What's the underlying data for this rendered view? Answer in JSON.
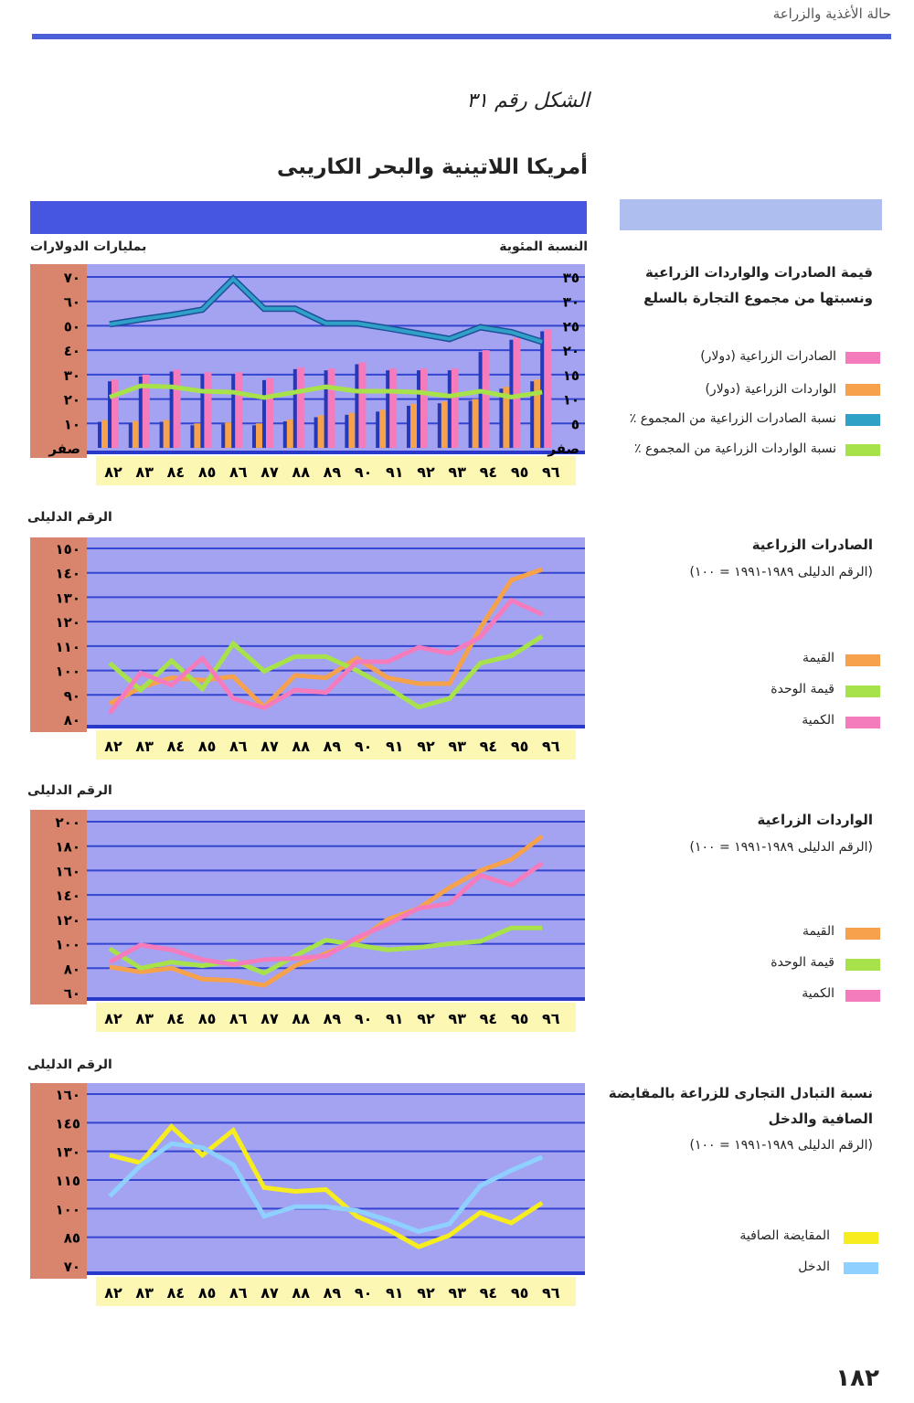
{
  "header": {
    "running_title": "حالة الأغذية والزراعة",
    "figure_label": "الشكل رقم ٣١",
    "region_title": "أمريكا اللاتينية والبحر الكاريبى",
    "page_number": "١٨٢"
  },
  "years": [
    "٨٢",
    "٨٣",
    "٨٤",
    "٨٥",
    "٨٦",
    "٨٧",
    "٨٨",
    "٨٩",
    "٩٠",
    "٩١",
    "٩٢",
    "٩٣",
    "٩٤",
    "٩٥",
    "٩٦"
  ],
  "colors": {
    "plot_bg": "#a3a3f2",
    "grid": "#3446d0",
    "axis_panel": "#d9846c",
    "year_strip": "#fdf7b4",
    "pink": "#f57cbc",
    "orange": "#f6a24c",
    "teal": "#2fa0c6",
    "green": "#a8e24a",
    "yellow": "#f6ec1e",
    "cyan": "#8ed0ff"
  },
  "chart_data": [
    {
      "type": "bar+line",
      "title": "قيمة الصادرات والواردات الزراعية ونسبتها من مجموع التجارة بالسلع",
      "ylabel_left": "بمليارات الدولارات",
      "ylabel_right": "النسبة المئوية",
      "yticks_left": [
        "صفر",
        "١٠",
        "٢٠",
        "٣٠",
        "٤٠",
        "٥٠",
        "٦٠",
        "٧٠"
      ],
      "yticks_right": [
        "صفر",
        "٥",
        "١٠",
        "١٥",
        "٢٠",
        "٢٥",
        "٣٠",
        "٣٥"
      ],
      "ylim_left": [
        0,
        70
      ],
      "ylim_right": [
        0,
        35
      ],
      "x": [
        1982,
        1983,
        1984,
        1985,
        1986,
        1987,
        1988,
        1989,
        1990,
        1991,
        1992,
        1993,
        1994,
        1995,
        1996
      ],
      "series": [
        {
          "name": "الصادرات الزراعية (دولار)",
          "kind": "bar",
          "axis": "left",
          "color": "pink",
          "values": [
            28,
            30,
            32,
            31,
            31,
            28.5,
            33,
            32.5,
            35,
            32.5,
            32.5,
            32.5,
            40,
            45,
            48.5
          ]
        },
        {
          "name": "الواردات الزراعية (دولار)",
          "kind": "bar",
          "axis": "left",
          "color": "orange",
          "values": [
            11.4,
            11,
            11.4,
            10,
            10.4,
            10,
            11.6,
            13.3,
            14.3,
            15.6,
            18,
            19,
            20,
            25,
            28
          ]
        },
        {
          "name": "نسبة الصادرات الزراعية من المجموع ٪",
          "kind": "line",
          "axis": "right",
          "color": "teal",
          "values": [
            25.3,
            26.3,
            27.2,
            28.3,
            34.6,
            28.5,
            28.5,
            25.5,
            25.5,
            24.5,
            23.4,
            22.3,
            24.7,
            23.7,
            21.7
          ]
        },
        {
          "name": "نسبة الواردات الزراعية من المجموع ٪",
          "kind": "line",
          "axis": "right",
          "color": "green",
          "values": [
            10.4,
            12.7,
            12.5,
            11.6,
            11.4,
            10.3,
            11.4,
            12.5,
            11.6,
            11.6,
            11.4,
            10.6,
            11.6,
            10.4,
            11.4
          ]
        }
      ]
    },
    {
      "type": "line",
      "title": "الصادرات الزراعية",
      "subtitle": "(الرقم الدليلى ١٩٨٩-١٩٩١ = ١٠٠)",
      "ylabel": "الرقم الدليلى",
      "yticks": [
        "٨٠",
        "٩٠",
        "١٠٠",
        "١١٠",
        "١٢٠",
        "١٣٠",
        "١٤٠",
        "١٥٠"
      ],
      "ylim": [
        80,
        150
      ],
      "series": [
        {
          "name": "القيمة",
          "color": "orange",
          "values": [
            86.4,
            93,
            97,
            96,
            97.5,
            85,
            98,
            97,
            105,
            97,
            94.6,
            94.6,
            117.5,
            137,
            141.4
          ]
        },
        {
          "name": "قيمة الوحدة",
          "color": "green",
          "values": [
            103,
            92,
            104,
            92.5,
            111,
            99.7,
            105.7,
            105.7,
            100,
            93,
            85,
            88.5,
            103,
            106,
            114
          ]
        },
        {
          "name": "الكمية",
          "color": "pink",
          "values": [
            82.5,
            99,
            94,
            105,
            88.5,
            84.7,
            92,
            91,
            103.6,
            103.6,
            109.5,
            107,
            113.7,
            128.7,
            123
          ]
        }
      ]
    },
    {
      "type": "line",
      "title": "الواردات الزراعية",
      "subtitle": "(الرقم الدليلى ١٩٨٩-١٩٩١ = ١٠٠)",
      "ylabel": "الرقم الدليلى",
      "yticks": [
        "٦٠",
        "٨٠",
        "١٠٠",
        "١٢٠",
        "١٤٠",
        "١٦٠",
        "١٨٠",
        "٢٠٠"
      ],
      "ylim": [
        60,
        200
      ],
      "series": [
        {
          "name": "القيمة",
          "color": "orange",
          "values": [
            81,
            77,
            80,
            71,
            70,
            66,
            82,
            92,
            102,
            120,
            129,
            146,
            160,
            169,
            188
          ]
        },
        {
          "name": "قيمة الوحدة",
          "color": "green",
          "values": [
            96,
            80,
            85,
            82,
            86,
            76,
            90,
            103,
            99,
            95,
            97,
            100,
            102,
            113,
            113
          ]
        },
        {
          "name": "الكمية",
          "color": "pink",
          "values": [
            85,
            99,
            95,
            87,
            83,
            87,
            88,
            90,
            105,
            116,
            129,
            133,
            156,
            148,
            166
          ]
        }
      ]
    },
    {
      "type": "line",
      "title": "نسبة التبادل التجارى للزراعة بالمقايضة الصافية والدخل",
      "subtitle": "(الرقم الدليلى ١٩٨٩-١٩٩١ = ١٠٠)",
      "ylabel": "الرقم الدليلى",
      "yticks": [
        "٧٠",
        "٨٥",
        "١٠٠",
        "١١٥",
        "١٣٠",
        "١٤٥",
        "١٦٠"
      ],
      "ylim": [
        70,
        160
      ],
      "series": [
        {
          "name": "المقايضة الصافية",
          "color": "yellow",
          "values": [
            128,
            124,
            143,
            128,
            141,
            111,
            109,
            110,
            96,
            89,
            80,
            86,
            98,
            92.5,
            103
          ]
        },
        {
          "name": "الدخل",
          "color": "cyan",
          "values": [
            106.5,
            122.6,
            134,
            132,
            123,
            96,
            101,
            101,
            99,
            94,
            88,
            92,
            112,
            120,
            127
          ]
        }
      ]
    }
  ]
}
